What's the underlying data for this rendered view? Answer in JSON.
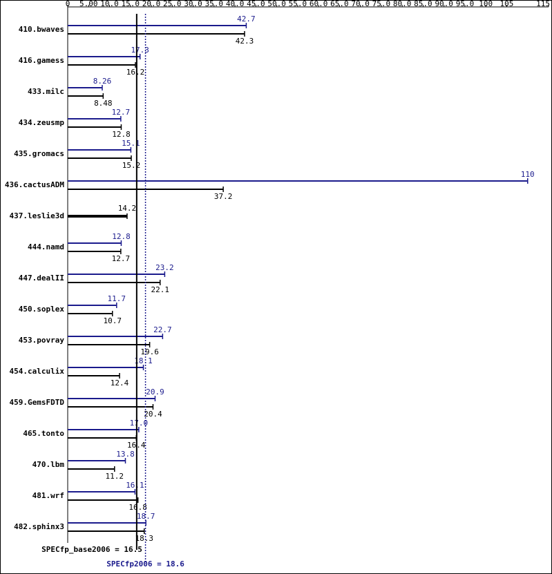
{
  "chart_data": {
    "type": "hbar-ratio",
    "categories": [
      "410.bwaves",
      "416.gamess",
      "433.milc",
      "434.zeusmp",
      "435.gromacs",
      "436.cactusADM",
      "437.leslie3d",
      "444.namd",
      "447.dealII",
      "450.soplex",
      "453.povray",
      "454.calculix",
      "459.GemsFDTD",
      "465.tonto",
      "470.lbm",
      "481.wrf",
      "482.sphinx3"
    ],
    "series": [
      {
        "color": "#1a1a8c",
        "values": [
          42.7,
          17.3,
          8.26,
          12.7,
          15.1,
          110,
          null,
          12.8,
          23.2,
          11.7,
          22.7,
          18.1,
          20.9,
          17.0,
          13.8,
          16.1,
          18.7
        ],
        "value_labels": [
          "42.7",
          "17.3",
          "8.26",
          "12.7",
          "15.1",
          "110",
          null,
          "12.8",
          "23.2",
          "11.7",
          "22.7",
          "18.1",
          "20.9",
          "17.0",
          "13.8",
          "16.1",
          "18.7"
        ]
      },
      {
        "color": "#000000",
        "values": [
          42.3,
          16.2,
          8.48,
          12.8,
          15.2,
          37.2,
          14.2,
          12.7,
          22.1,
          10.7,
          19.6,
          12.4,
          20.4,
          16.4,
          11.2,
          16.8,
          18.3
        ]
      }
    ],
    "xlim": [
      0,
      115
    ],
    "xticks": [
      0,
      {
        "value": 5,
        "label": "5.00"
      },
      {
        "value": 10,
        "label": "10.0"
      },
      {
        "value": 15,
        "label": "15.0"
      },
      {
        "value": 20,
        "label": "20.0"
      },
      {
        "value": 25,
        "label": "25.0"
      },
      {
        "value": 30,
        "label": "30.0"
      },
      {
        "value": 35,
        "label": "35.0"
      },
      {
        "value": 40,
        "label": "40.0"
      },
      {
        "value": 45,
        "label": "45.0"
      },
      {
        "value": 50,
        "label": "50.0"
      },
      {
        "value": 55,
        "label": "55.0"
      },
      {
        "value": 60,
        "label": "60.0"
      },
      {
        "value": 65,
        "label": "65.0"
      },
      {
        "value": 70,
        "label": "70.0"
      },
      {
        "value": 75,
        "label": "75.0"
      },
      {
        "value": 80,
        "label": "80.0"
      },
      {
        "value": 85,
        "label": "85.0"
      },
      {
        "value": 90,
        "label": "90.0"
      },
      {
        "value": 95,
        "label": "95.0"
      },
      100,
      105,
      115
    ],
    "reference_lines": [
      {
        "label": "SPECfp_base2006 = 16.5",
        "value": 16.5,
        "color": "#000000",
        "style": "solid"
      },
      {
        "label": "SPECfp2006 = 18.6",
        "value": 18.6,
        "color": "#1a1a8c",
        "style": "dotted"
      }
    ]
  }
}
